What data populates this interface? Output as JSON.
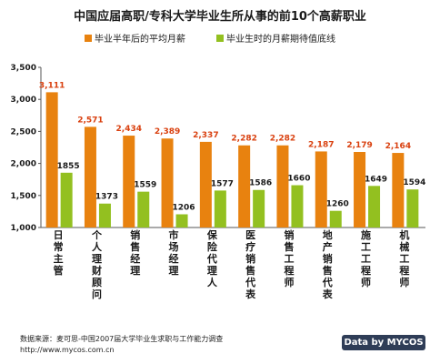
{
  "chart_data": {
    "type": "bar",
    "title": "中国应届高职/专科大学毕业生所从事的前10个高薪职业",
    "categories": [
      "日常主管",
      "个人理财顾问",
      "销售经理",
      "市场经理",
      "保险代理人",
      "医疗销售代表",
      "销售工程师",
      "地产销售代表",
      "施工工程师",
      "机械工程师"
    ],
    "series": [
      {
        "name": "毕业半年后的平均月薪",
        "values": [
          3111,
          2571,
          2434,
          2389,
          2337,
          2282,
          2282,
          2187,
          2179,
          2164
        ],
        "color": "#e8820f"
      },
      {
        "name": "毕业生时的月薪期待值底线",
        "values": [
          1855,
          1373,
          1559,
          1206,
          1577,
          1586,
          1660,
          1260,
          1649,
          1594
        ],
        "color": "#93c020"
      }
    ],
    "value_labels": [
      [
        "3,111",
        "2,571",
        "2,434",
        "2,389",
        "2,337",
        "2,282",
        "2,282",
        "2,187",
        "2,179",
        "2,164"
      ],
      [
        "1855",
        "1373",
        "1559",
        "1206",
        "1577",
        "1586",
        "1660",
        "1260",
        "1649",
        "1594"
      ]
    ],
    "ylim": [
      1000,
      3500
    ],
    "yticks": [
      "1,000",
      "1,500",
      "2,000",
      "2,500",
      "3,000",
      "3,500"
    ],
    "ytick_values": [
      1000,
      1500,
      2000,
      2500,
      3000,
      3500
    ],
    "legend_position": "top-center",
    "grid": false
  },
  "source": {
    "line1": "数据来源：麦可思-中国2007届大学毕业生求职与工作能力调查",
    "line2": "http://www.mycos.com.cn"
  },
  "badge": "Data by MYCOS"
}
